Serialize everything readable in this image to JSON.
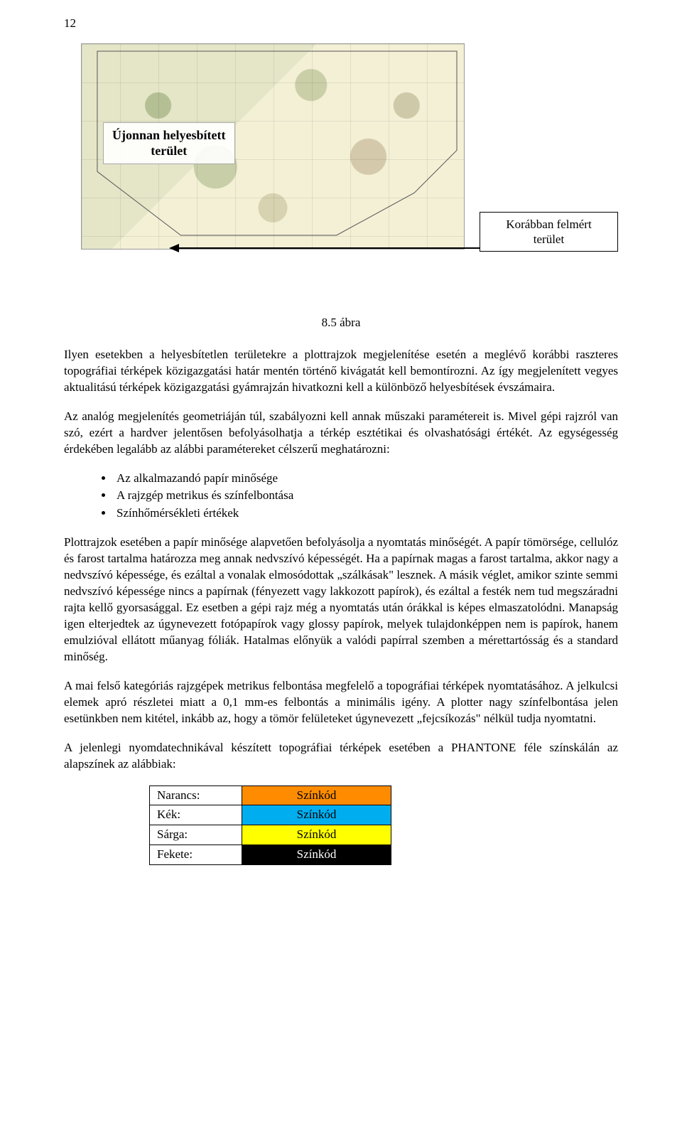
{
  "page_number": "12",
  "figure": {
    "map_label_line1": "Újonnan helyesbített",
    "map_label_line2": "terület",
    "callout_line1": "Korábban felmért",
    "callout_line2": "terület",
    "caption": "8.5 ábra"
  },
  "paragraphs": {
    "p1": "Ilyen esetekben a helyesbítetlen területekre a plottrajzok megjelenítése esetén a meglévő korábbi raszteres topográfiai térképek közigazgatási határ mentén történő kivágatát kell bemontírozni. Az így megjelenített vegyes aktualitású térképek közigazgatási gyámrajzán hivatkozni kell a különböző helyesbítések évszámaira.",
    "p2": "Az analóg megjelenítés geometriáján túl, szabályozni kell annak műszaki paramétereit is. Mivel gépi rajzról van szó, ezért a hardver jelentősen befolyásolhatja a térkép esztétikai és olvashatósági értékét. Az egységesség érdekében legalább az alábbi paramétereket célszerű meghatározni:",
    "p3": "Plottrajzok esetében a papír minősége alapvetően befolyásolja a nyomtatás minőségét. A papír tömörsége, cellulóz és farost tartalma határozza meg annak nedvszívó képességét. Ha a papírnak magas a farost tartalma, akkor nagy a nedvszívó képessége, és ezáltal a vonalak elmosódottak „szálkásak\" lesznek. A másik véglet, amikor szinte semmi nedvszívó képessége nincs a papírnak (fényezett vagy lakkozott papírok), és ezáltal a festék nem tud megszáradni rajta kellő gyorsasággal. Ez esetben a gépi rajz még a nyomtatás után órákkal is képes elmaszatolódni. Manapság igen elterjedtek az úgynevezett fotópapírok vagy glossy papírok, melyek tulajdonképpen nem is papírok, hanem emulzióval ellátott műanyag fóliák. Hatalmas előnyük a valódi papírral szemben a mérettartósság és a standard minőség.",
    "p4": "A mai felső kategóriás rajzgépek metrikus felbontása megfelelő a topográfiai térképek nyomtatásához. A jelkulcsi elemek apró részletei miatt a 0,1 mm-es felbontás a minimális igény. A plotter nagy színfelbontása jelen esetünkben nem kitétel, inkább az, hogy a tömör felületeket úgynevezett „fejcsíkozás\" nélkül tudja nyomtatni.",
    "p5": "A jelenlegi nyomdatechnikával készített topográfiai térképek esetében a PHANTONE féle színskálán az alapszínek az alábbiak:"
  },
  "bullets": [
    "Az alkalmazandó papír minősége",
    "A rajzgép metrikus és színfelbontása",
    "Színhőmérsékleti értékek"
  ],
  "color_table": {
    "code_label": "Színkód",
    "rows": [
      {
        "name": "Narancs:",
        "color": "#ff8c00"
      },
      {
        "name": "Kék:",
        "color": "#00aeef"
      },
      {
        "name": "Sárga:",
        "color": "#ffff00"
      },
      {
        "name": "Fekete:",
        "color": "#000000",
        "text": "#ffffff"
      }
    ]
  }
}
